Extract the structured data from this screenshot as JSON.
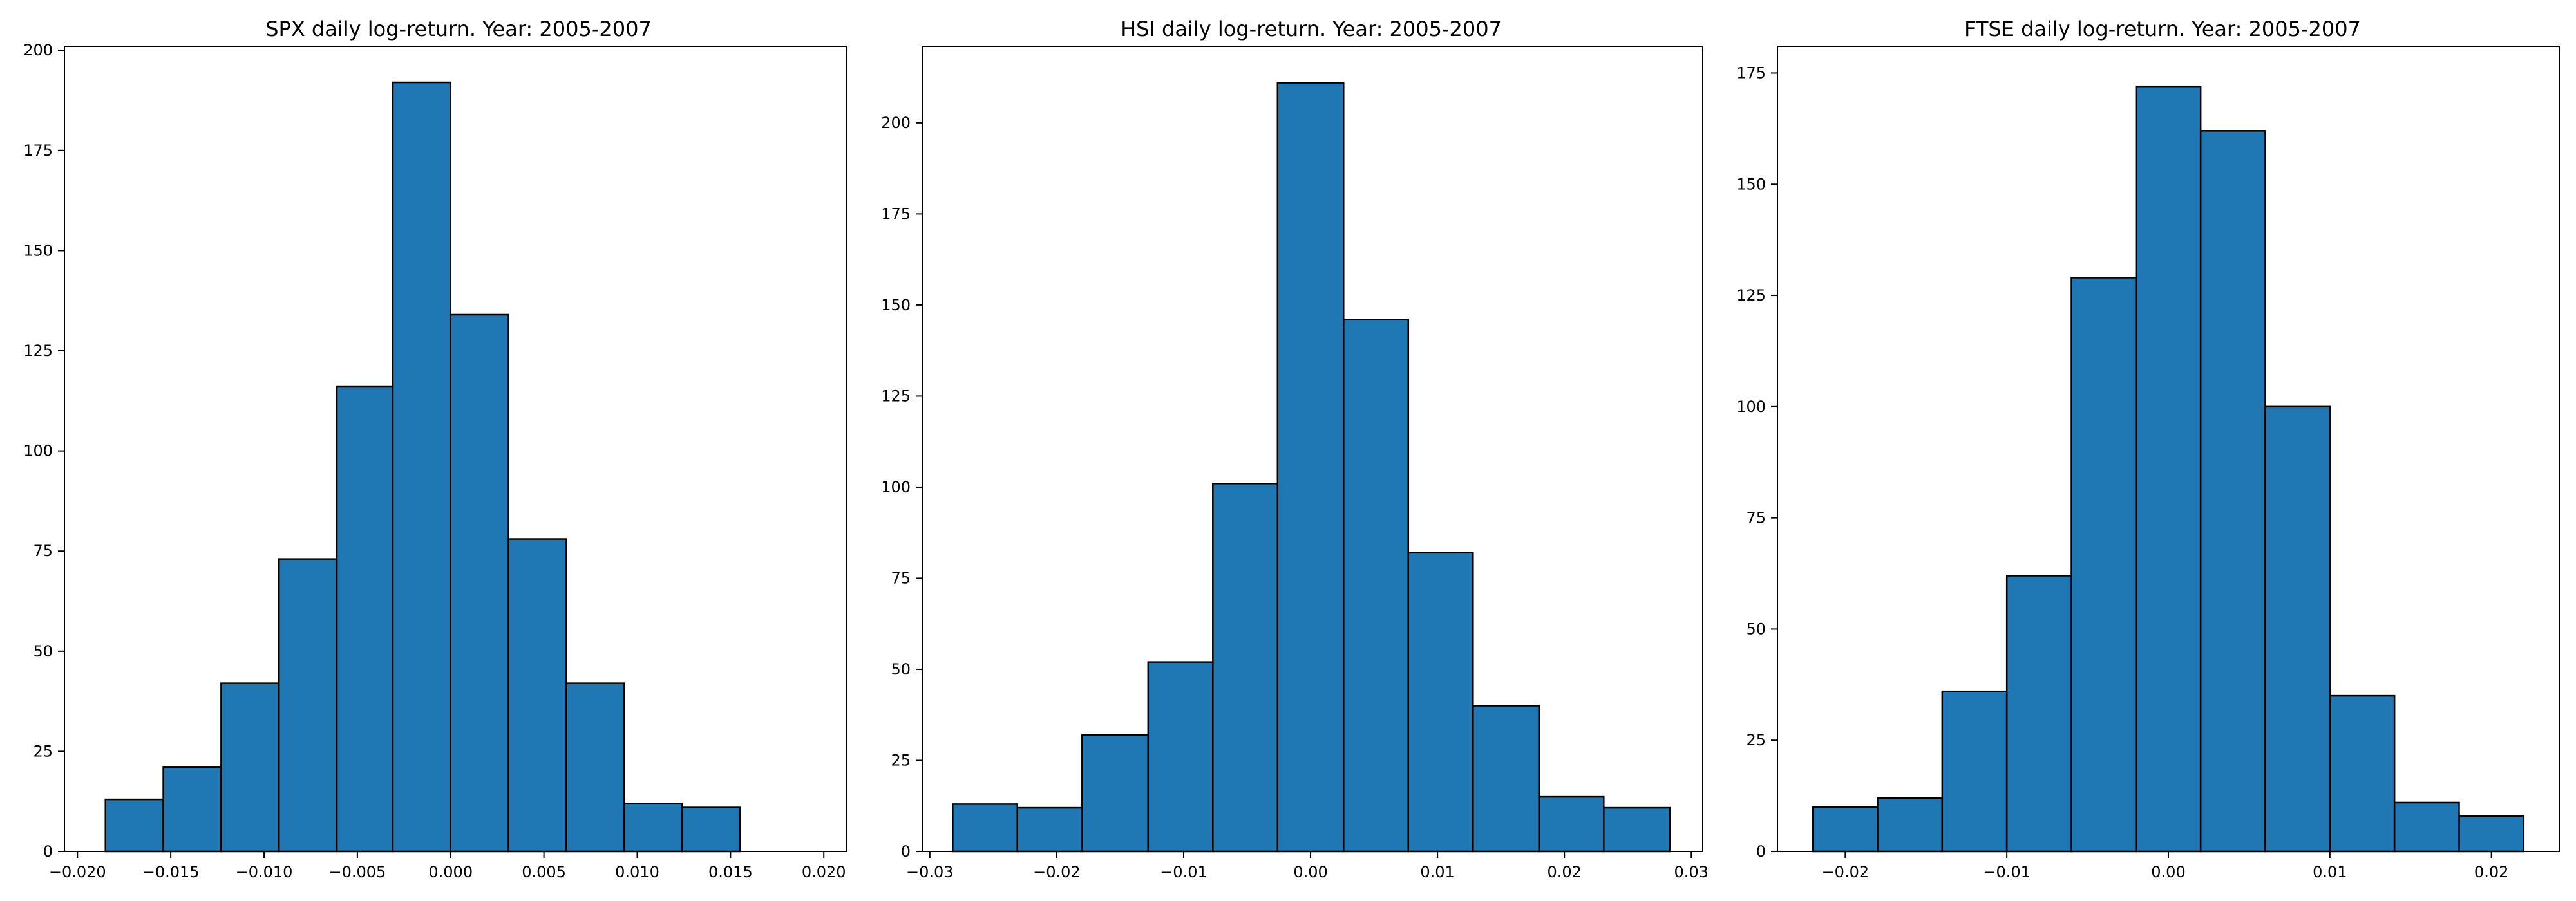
{
  "chart_data": [
    {
      "type": "bar",
      "title": "SPX daily log-return. Year: 2005-2007",
      "xlabel": "",
      "ylabel": "",
      "bar_color": "#1f77b4",
      "edge_color": "#000000",
      "bin_edges": [
        -0.0185,
        -0.0154,
        -0.0123,
        -0.0092,
        -0.0061,
        -0.0031,
        0.0,
        0.0031,
        0.0062,
        0.0093,
        0.0124,
        0.0155
      ],
      "values": [
        13,
        21,
        42,
        73,
        116,
        192,
        134,
        78,
        42,
        12,
        11
      ],
      "xlim": [
        -0.0207,
        0.0212
      ],
      "ylim": [
        0,
        201
      ],
      "xticks": [
        -0.02,
        -0.015,
        -0.01,
        -0.005,
        0.0,
        0.005,
        0.01,
        0.015,
        0.02
      ],
      "xtick_labels": [
        "−0.020",
        "−0.015",
        "−0.010",
        "−0.005",
        "0.000",
        "0.005",
        "0.010",
        "0.015",
        "0.020"
      ],
      "yticks": [
        0,
        25,
        50,
        75,
        100,
        125,
        150,
        175,
        200
      ],
      "ytick_labels": [
        "0",
        "25",
        "50",
        "75",
        "100",
        "125",
        "150",
        "175",
        "200"
      ],
      "grid": false
    },
    {
      "type": "bar",
      "title": "HSI daily log-return. Year: 2005-2007",
      "xlabel": "",
      "ylabel": "",
      "bar_color": "#1f77b4",
      "edge_color": "#000000",
      "bin_edges": [
        -0.0282,
        -0.0231,
        -0.018,
        -0.0128,
        -0.0077,
        -0.0026,
        0.0026,
        0.0077,
        0.0128,
        0.018,
        0.0231,
        0.0283
      ],
      "values": [
        13,
        12,
        32,
        52,
        101,
        211,
        146,
        82,
        40,
        15,
        12
      ],
      "xlim": [
        -0.0306,
        0.0309
      ],
      "ylim": [
        0,
        221
      ],
      "xticks": [
        -0.03,
        -0.02,
        -0.01,
        0.0,
        0.01,
        0.02,
        0.03
      ],
      "xtick_labels": [
        "−0.03",
        "−0.02",
        "−0.01",
        "0.00",
        "0.01",
        "0.02",
        "0.03"
      ],
      "yticks": [
        0,
        25,
        50,
        75,
        100,
        125,
        150,
        175,
        200
      ],
      "ytick_labels": [
        "0",
        "25",
        "50",
        "75",
        "100",
        "125",
        "150",
        "175",
        "200"
      ],
      "grid": false
    },
    {
      "type": "bar",
      "title": "FTSE daily log-return. Year: 2005-2007",
      "xlabel": "",
      "ylabel": "",
      "bar_color": "#1f77b4",
      "edge_color": "#000000",
      "bin_edges": [
        -0.022,
        -0.018,
        -0.014,
        -0.01,
        -0.006,
        -0.002,
        0.002,
        0.006,
        0.01,
        0.014,
        0.018,
        0.022
      ],
      "values": [
        10,
        12,
        36,
        62,
        129,
        172,
        162,
        100,
        35,
        11,
        8
      ],
      "xlim": [
        -0.0242,
        0.0242
      ],
      "ylim": [
        0,
        181
      ],
      "xticks": [
        -0.02,
        -0.01,
        0.0,
        0.01,
        0.02
      ],
      "xtick_labels": [
        "−0.02",
        "−0.01",
        "0.00",
        "0.01",
        "0.02"
      ],
      "yticks": [
        0,
        25,
        50,
        75,
        100,
        125,
        150,
        175
      ],
      "ytick_labels": [
        "0",
        "25",
        "50",
        "75",
        "100",
        "125",
        "150",
        "175"
      ],
      "grid": false
    }
  ]
}
